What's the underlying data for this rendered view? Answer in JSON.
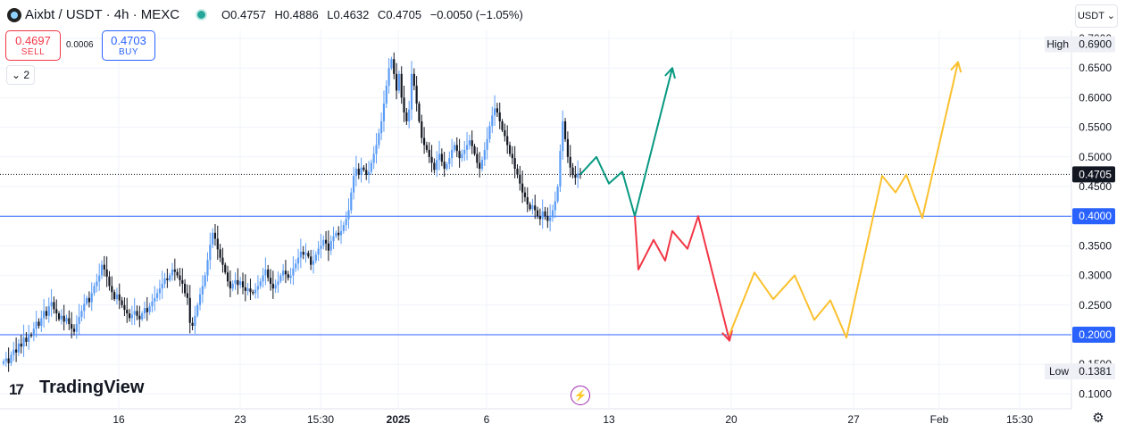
{
  "header": {
    "symbol": "Aixbt / USDT · 4h · MEXC",
    "ohlc": {
      "o_label": "O",
      "o": "0.4757",
      "h_label": "H",
      "h": "0.4886",
      "l_label": "L",
      "l": "0.4632",
      "c_label": "C",
      "c": "0.4705",
      "change": "−0.0050 (−1.05%)"
    },
    "currency_button": "USDT ⌄"
  },
  "trade": {
    "sell_price": "0.4697",
    "sell_label": "SELL",
    "spread": "0.0006",
    "buy_price": "0.4703",
    "buy_label": "BUY"
  },
  "indicators_toggle": "⌄ 2",
  "watermark": "TradingView",
  "icons": {
    "logo": "aixbt-logo-icon",
    "live": "live-dot-icon",
    "lightning": "lightning-icon",
    "settings": "gear-icon"
  },
  "colors": {
    "up": "#5b9cf6",
    "down": "#131722",
    "level": "#2962ff",
    "green_path": "#089981",
    "red_path": "#f23645",
    "yellow_path": "#fbc02d"
  },
  "chart_data": {
    "type": "candlestick",
    "y_axis_labels": [
      "0.7000",
      "0.6500",
      "0.6000",
      "0.5500",
      "0.5000",
      "0.4500",
      "0.3500",
      "0.3000",
      "0.2500",
      "0.1500",
      "0.1000"
    ],
    "x_axis_labels": [
      "16",
      "23",
      "15:30",
      "2025",
      "6",
      "13",
      "20",
      "27",
      "Feb",
      "15:30"
    ],
    "ylim": [
      0.09,
      0.71
    ],
    "scale": "linear",
    "grid": true,
    "price_tags": [
      {
        "label": "High",
        "value": "0.6900",
        "kind": "high"
      },
      {
        "label": "",
        "value": "0.4705",
        "kind": "last"
      },
      {
        "label": "",
        "value": "0.4000",
        "kind": "level"
      },
      {
        "label": "",
        "value": "0.2000",
        "kind": "level"
      },
      {
        "label": "Low",
        "value": "0.1381",
        "kind": "low"
      }
    ],
    "levels": [
      0.4,
      0.2
    ],
    "last_price": 0.4705,
    "projection_paths": [
      {
        "color": "green",
        "points": [
          [
            0.4705,
            0
          ],
          [
            0.5,
            1
          ],
          [
            0.455,
            2
          ],
          [
            0.475,
            3
          ],
          [
            0.4,
            4
          ],
          [
            0.65,
            5
          ]
        ]
      },
      {
        "color": "red",
        "points": [
          [
            0.4,
            0
          ],
          [
            0.31,
            1
          ],
          [
            0.36,
            2
          ],
          [
            0.325,
            3
          ],
          [
            0.375,
            4
          ],
          [
            0.345,
            5
          ],
          [
            0.4,
            6
          ],
          [
            0.19,
            7
          ]
        ]
      },
      {
        "color": "yellow",
        "points": [
          [
            0.2,
            0
          ],
          [
            0.305,
            1
          ],
          [
            0.26,
            2
          ],
          [
            0.3,
            3
          ],
          [
            0.225,
            4
          ],
          [
            0.258,
            5
          ],
          [
            0.195,
            6
          ],
          [
            0.468,
            7
          ],
          [
            0.44,
            8
          ],
          [
            0.47,
            9
          ],
          [
            0.397,
            10
          ],
          [
            0.66,
            11
          ]
        ]
      }
    ],
    "candles_close": [
      0.155,
      0.16,
      0.152,
      0.166,
      0.175,
      0.17,
      0.185,
      0.18,
      0.195,
      0.188,
      0.2,
      0.198,
      0.21,
      0.222,
      0.215,
      0.228,
      0.24,
      0.232,
      0.248,
      0.255,
      0.243,
      0.236,
      0.226,
      0.232,
      0.222,
      0.228,
      0.218,
      0.21,
      0.205,
      0.218,
      0.23,
      0.24,
      0.252,
      0.262,
      0.255,
      0.27,
      0.282,
      0.29,
      0.3,
      0.318,
      0.31,
      0.298,
      0.282,
      0.272,
      0.26,
      0.268,
      0.258,
      0.25,
      0.242,
      0.236,
      0.228,
      0.234,
      0.24,
      0.232,
      0.226,
      0.236,
      0.245,
      0.238,
      0.248,
      0.256,
      0.262,
      0.27,
      0.278,
      0.286,
      0.295,
      0.292,
      0.3,
      0.31,
      0.306,
      0.3,
      0.292,
      0.286,
      0.27,
      0.262,
      0.22,
      0.215,
      0.232,
      0.25,
      0.268,
      0.282,
      0.3,
      0.326,
      0.352,
      0.372,
      0.362,
      0.344,
      0.33,
      0.318,
      0.305,
      0.29,
      0.278,
      0.286,
      0.292,
      0.284,
      0.29,
      0.28,
      0.274,
      0.278,
      0.272,
      0.27,
      0.276,
      0.282,
      0.29,
      0.3,
      0.31,
      0.296,
      0.286,
      0.278,
      0.284,
      0.29,
      0.3,
      0.308,
      0.302,
      0.296,
      0.3,
      0.312,
      0.32,
      0.33,
      0.34,
      0.335,
      0.338,
      0.332,
      0.318,
      0.325,
      0.335,
      0.345,
      0.35,
      0.36,
      0.354,
      0.342,
      0.358,
      0.366,
      0.372,
      0.368,
      0.375,
      0.385,
      0.395,
      0.41,
      0.44,
      0.468,
      0.48,
      0.47,
      0.482,
      0.478,
      0.47,
      0.475,
      0.49,
      0.505,
      0.52,
      0.54,
      0.56,
      0.59,
      0.62,
      0.65,
      0.665,
      0.64,
      0.612,
      0.64,
      0.6,
      0.575,
      0.56,
      0.58,
      0.64,
      0.62,
      0.59,
      0.56,
      0.532,
      0.52,
      0.512,
      0.5,
      0.49,
      0.478,
      0.495,
      0.505,
      0.492,
      0.48,
      0.488,
      0.498,
      0.512,
      0.52,
      0.51,
      0.498,
      0.505,
      0.512,
      0.52,
      0.528,
      0.518,
      0.505,
      0.49,
      0.48,
      0.495,
      0.512,
      0.53,
      0.552,
      0.57,
      0.582,
      0.575,
      0.56,
      0.545,
      0.535,
      0.52,
      0.505,
      0.498,
      0.48,
      0.47,
      0.455,
      0.44,
      0.432,
      0.42,
      0.412,
      0.418,
      0.41,
      0.4,
      0.395,
      0.408,
      0.4,
      0.392,
      0.398,
      0.41,
      0.425,
      0.45,
      0.51,
      0.56,
      0.53,
      0.5,
      0.482,
      0.47,
      0.465,
      0.472,
      0.4705
    ]
  }
}
